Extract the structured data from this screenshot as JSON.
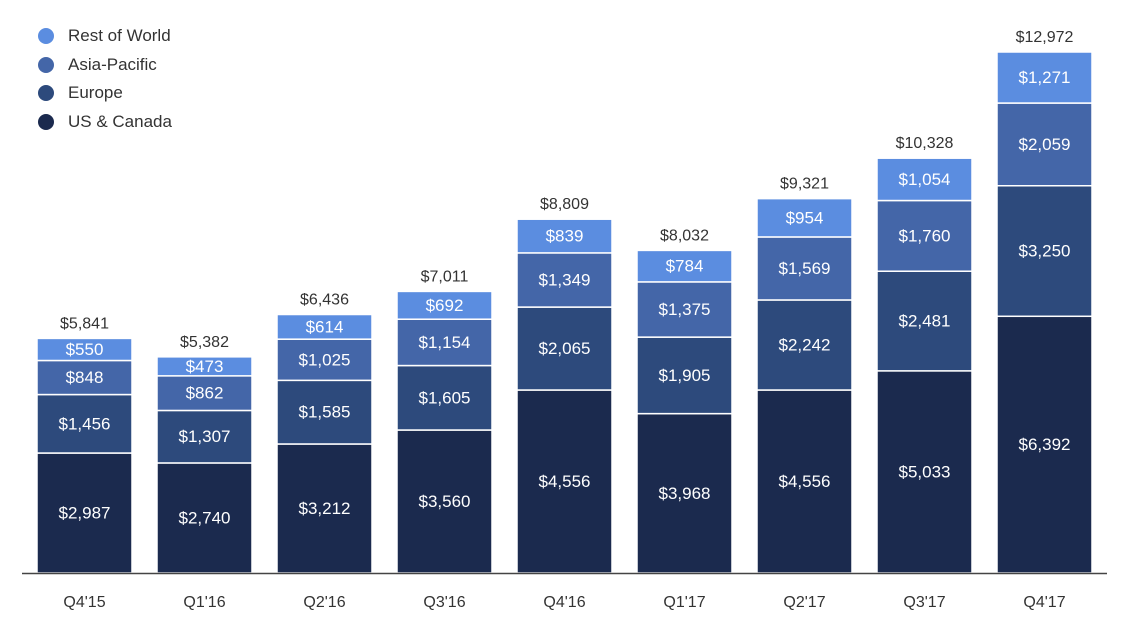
{
  "chart_data": {
    "type": "bar",
    "stacked": true,
    "title": "",
    "xlabel": "",
    "ylabel": "",
    "categories": [
      "Q4'15",
      "Q1'16",
      "Q2'16",
      "Q3'16",
      "Q4'16",
      "Q1'17",
      "Q2'17",
      "Q3'17",
      "Q4'17"
    ],
    "totals": [
      5841,
      5382,
      6436,
      7011,
      8809,
      8032,
      9321,
      10328,
      12972
    ],
    "total_labels": [
      "$5,841",
      "$5,382",
      "$6,436",
      "$7,011",
      "$8,809",
      "$8,032",
      "$9,321",
      "$10,328",
      "$12,972"
    ],
    "series": [
      {
        "name": "US & Canada",
        "color": "#1b2a4e",
        "values": [
          2987,
          2740,
          3212,
          3560,
          4556,
          3968,
          4556,
          5033,
          6392
        ],
        "labels": [
          "$2,987",
          "$2,740",
          "$3,212",
          "$3,560",
          "$4,556",
          "$3,968",
          "$4,556",
          "$5,033",
          "$6,392"
        ]
      },
      {
        "name": "Europe",
        "color": "#2d4a7c",
        "values": [
          1456,
          1307,
          1585,
          1605,
          2065,
          1905,
          2242,
          2481,
          3250
        ],
        "labels": [
          "$1,456",
          "$1,307",
          "$1,585",
          "$1,605",
          "$2,065",
          "$1,905",
          "$2,242",
          "$2,481",
          "$3,250"
        ]
      },
      {
        "name": "Asia-Pacific",
        "color": "#4466a8",
        "values": [
          848,
          862,
          1025,
          1154,
          1349,
          1375,
          1569,
          1760,
          2059
        ],
        "labels": [
          "$848",
          "$862",
          "$1,025",
          "$1,154",
          "$1,349",
          "$1,375",
          "$1,569",
          "$1,760",
          "$2,059"
        ]
      },
      {
        "name": "Rest of World",
        "color": "#5b8de0",
        "values": [
          550,
          473,
          614,
          692,
          839,
          784,
          954,
          1054,
          1271
        ],
        "labels": [
          "$550",
          "$473",
          "$614",
          "$692",
          "$839",
          "$784",
          "$954",
          "$1,054",
          "$1,271"
        ]
      }
    ],
    "legend": {
      "position": "top-left",
      "entries": [
        "Rest of World",
        "Asia-Pacific",
        "Europe",
        "US & Canada"
      ]
    },
    "grid": false
  }
}
